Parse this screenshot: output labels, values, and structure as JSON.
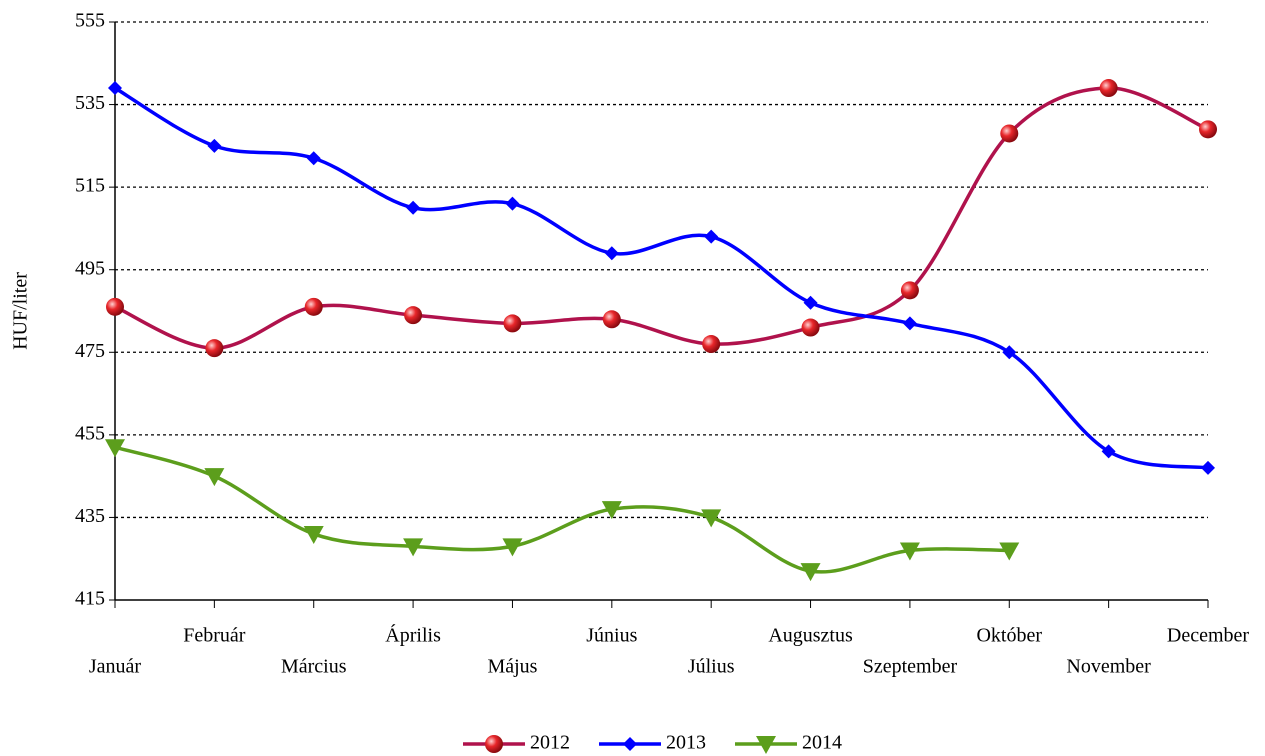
{
  "chart_data": {
    "type": "line",
    "y_label": "HUF/liter",
    "categories": [
      "Január",
      "Február",
      "Március",
      "Április",
      "Május",
      "Június",
      "Július",
      "Augusztus",
      "Szeptember",
      "Október",
      "November",
      "December"
    ],
    "series": [
      {
        "name": "2012",
        "color": "#b0124c",
        "marker": "circle",
        "marker_color": "#e8262a",
        "values": [
          486,
          476,
          486,
          484,
          482,
          483,
          477,
          481,
          490,
          528,
          539,
          529
        ]
      },
      {
        "name": "2013",
        "color": "#0000ff",
        "marker": "diamond",
        "marker_color": "#0000ff",
        "values": [
          539,
          525,
          522,
          510,
          511,
          499,
          503,
          487,
          482,
          475,
          451,
          447
        ]
      },
      {
        "name": "2014",
        "color": "#5c9e1c",
        "marker": "triangle-down",
        "marker_color": "#5c9e1c",
        "values": [
          452,
          445,
          431,
          428,
          428,
          437,
          435,
          422,
          427,
          427,
          null,
          null
        ]
      }
    ],
    "ylim": [
      415,
      555
    ],
    "yticks": [
      415,
      435,
      455,
      475,
      495,
      515,
      535,
      555
    ],
    "grid": true,
    "smooth": true,
    "legend": "bottom"
  }
}
